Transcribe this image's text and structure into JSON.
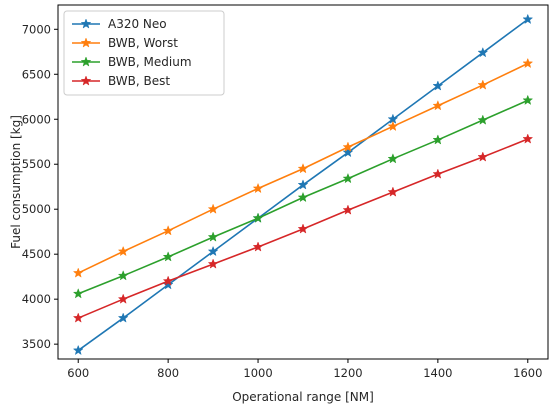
{
  "chart_data": {
    "type": "line",
    "xlabel": "Operational range [NM]",
    "ylabel": "Fuel consumption [kg]",
    "x": [
      600,
      700,
      800,
      900,
      1000,
      1100,
      1200,
      1300,
      1400,
      1500,
      1600
    ],
    "xlim": [
      555,
      1645
    ],
    "ylim": [
      3335,
      7270
    ],
    "xticks": [
      600,
      800,
      1000,
      1200,
      1400,
      1600
    ],
    "yticks": [
      3500,
      4000,
      4500,
      5000,
      5500,
      6000,
      6500,
      7000
    ],
    "grid": false,
    "legend_placement": "top-left",
    "marker": "star",
    "series": [
      {
        "name": "A320 Neo",
        "color": "#1f77b4",
        "values": [
          3430,
          3790,
          4160,
          4530,
          4900,
          5270,
          5630,
          6000,
          6370,
          6740,
          7110
        ]
      },
      {
        "name": "BWB, Worst",
        "color": "#ff7f0e",
        "values": [
          4290,
          4530,
          4760,
          5000,
          5230,
          5450,
          5690,
          5920,
          6150,
          6380,
          6620
        ]
      },
      {
        "name": "BWB, Medium",
        "color": "#2ca02c",
        "values": [
          4060,
          4260,
          4470,
          4690,
          4900,
          5130,
          5340,
          5560,
          5770,
          5990,
          6210
        ]
      },
      {
        "name": "BWB, Best",
        "color": "#d62728",
        "values": [
          3790,
          4000,
          4200,
          4390,
          4580,
          4780,
          4990,
          5190,
          5390,
          5580,
          5780
        ]
      }
    ]
  }
}
